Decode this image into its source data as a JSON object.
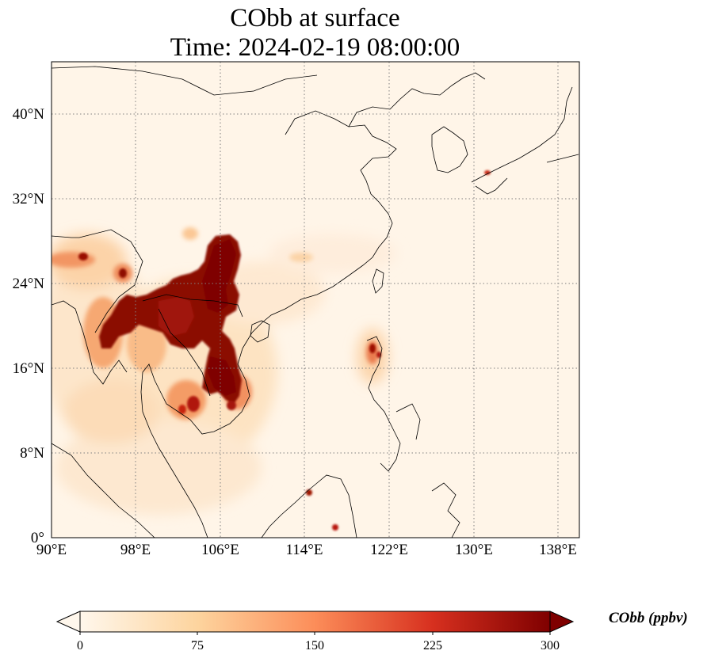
{
  "title": {
    "line1": "CObb at surface",
    "line2": "Time: 2024-02-19 08:00:00"
  },
  "map": {
    "projection": "PlateCarree",
    "lon_range": [
      90,
      140
    ],
    "lat_range": [
      0,
      45
    ],
    "gridlines": "dotted",
    "x_ticks": [
      {
        "value": 90,
        "label": "90°E"
      },
      {
        "value": 98,
        "label": "98°E"
      },
      {
        "value": 106,
        "label": "106°E"
      },
      {
        "value": 114,
        "label": "114°E"
      },
      {
        "value": 122,
        "label": "122°E"
      },
      {
        "value": 130,
        "label": "130°E"
      },
      {
        "value": 138,
        "label": "138°E"
      }
    ],
    "y_ticks": [
      {
        "value": 0,
        "label": "0°"
      },
      {
        "value": 8,
        "label": "8°N"
      },
      {
        "value": 16,
        "label": "16°N"
      },
      {
        "value": 24,
        "label": "24°N"
      },
      {
        "value": 32,
        "label": "32°N"
      },
      {
        "value": 40,
        "label": "40°N"
      }
    ]
  },
  "colorbar": {
    "label": "CObb (ppbv)",
    "colormap": "OrRd",
    "range": [
      0,
      300
    ],
    "extend": "both",
    "ticks": [
      {
        "value": 0,
        "label": "0"
      },
      {
        "value": 75,
        "label": "75"
      },
      {
        "value": 150,
        "label": "150"
      },
      {
        "value": 225,
        "label": "225"
      },
      {
        "value": 300,
        "label": "300"
      }
    ],
    "colors": [
      "#fff7ec",
      "#fdd49e",
      "#fc8d59",
      "#d7301f",
      "#7f0000"
    ]
  }
}
